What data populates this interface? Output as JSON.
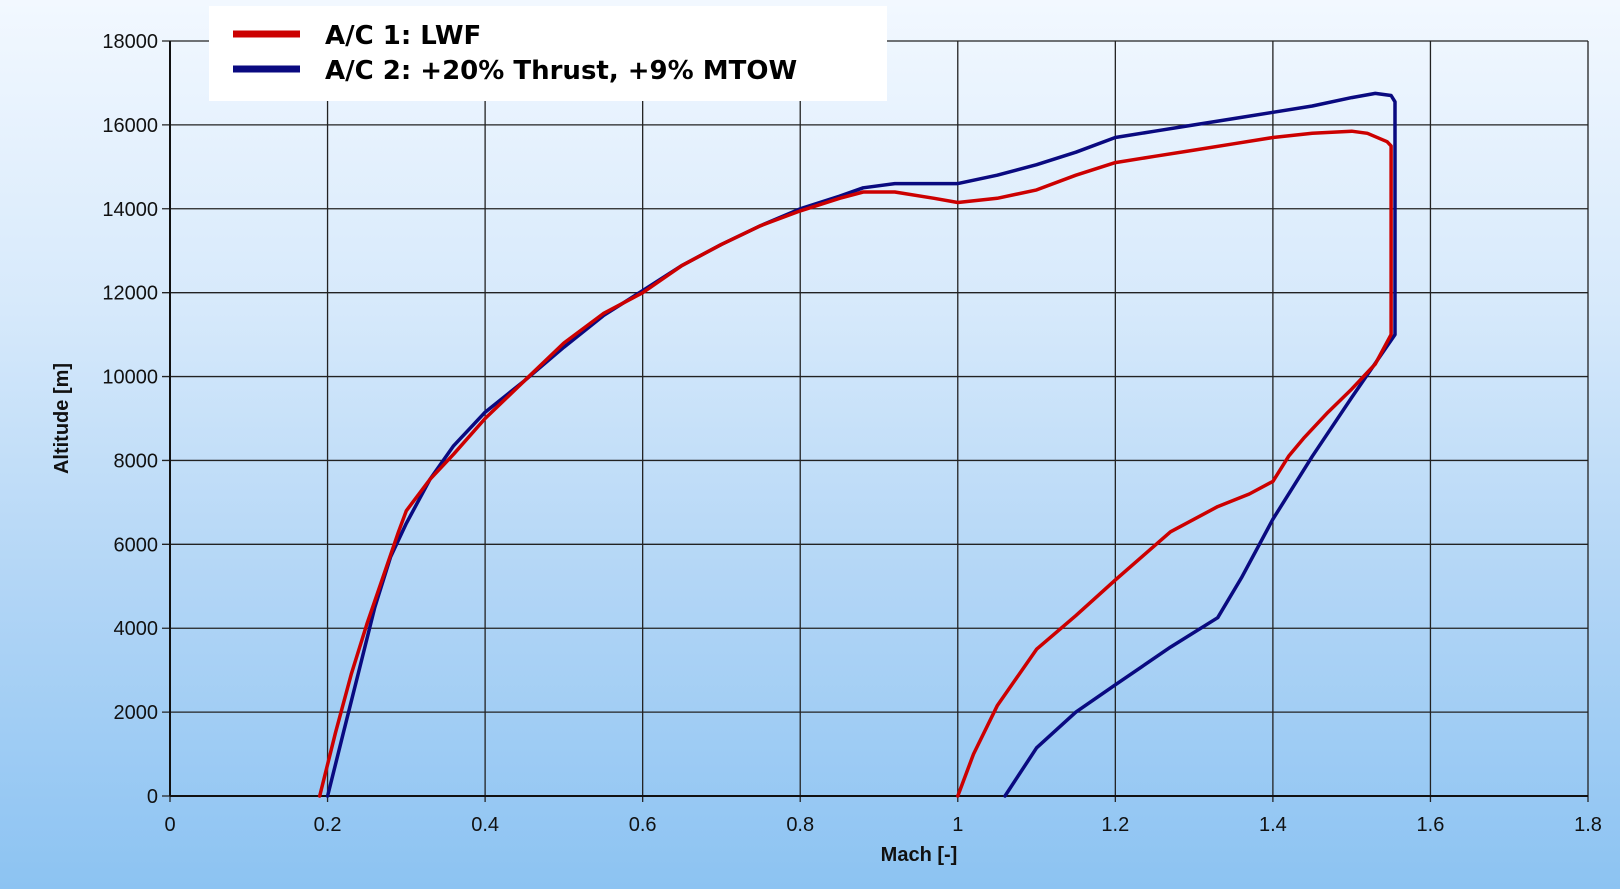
{
  "chart_data": {
    "type": "line",
    "title": "",
    "xlabel": "Mach [-]",
    "ylabel": "Altitude [m]",
    "xlim": [
      0,
      1.8
    ],
    "ylim": [
      0,
      18000
    ],
    "xticks": [
      0,
      0.2,
      0.4,
      0.6,
      0.8,
      1,
      1.2,
      1.4,
      1.6,
      1.8
    ],
    "xtick_labels": [
      "0",
      "0.2",
      "0.4",
      "0.6",
      "0.8",
      "1",
      "1.2",
      "1.4",
      "1.6",
      "1.8"
    ],
    "yticks": [
      0,
      2000,
      4000,
      6000,
      8000,
      10000,
      12000,
      14000,
      16000,
      18000
    ],
    "ytick_labels": [
      "0",
      "2000",
      "4000",
      "6000",
      "8000",
      "10000",
      "12000",
      "14000",
      "16000",
      "18000"
    ],
    "grid": true,
    "legend_position": "top-left",
    "series": [
      {
        "name": "A/C 1: LWF",
        "color": "#cc0000",
        "points": [
          [
            0.19,
            0
          ],
          [
            0.21,
            1500
          ],
          [
            0.23,
            2900
          ],
          [
            0.25,
            4100
          ],
          [
            0.27,
            5200
          ],
          [
            0.29,
            6300
          ],
          [
            0.3,
            6800
          ],
          [
            0.33,
            7550
          ],
          [
            0.36,
            8150
          ],
          [
            0.4,
            9000
          ],
          [
            0.45,
            9900
          ],
          [
            0.5,
            10800
          ],
          [
            0.55,
            11500
          ],
          [
            0.6,
            12000
          ],
          [
            0.65,
            12650
          ],
          [
            0.7,
            13150
          ],
          [
            0.75,
            13600
          ],
          [
            0.8,
            13950
          ],
          [
            0.85,
            14250
          ],
          [
            0.88,
            14400
          ],
          [
            0.92,
            14400
          ],
          [
            0.97,
            14250
          ],
          [
            1.0,
            14150
          ],
          [
            1.05,
            14250
          ],
          [
            1.1,
            14450
          ],
          [
            1.15,
            14800
          ],
          [
            1.2,
            15100
          ],
          [
            1.25,
            15250
          ],
          [
            1.3,
            15400
          ],
          [
            1.35,
            15550
          ],
          [
            1.4,
            15700
          ],
          [
            1.45,
            15800
          ],
          [
            1.5,
            15850
          ],
          [
            1.52,
            15800
          ],
          [
            1.545,
            15600
          ],
          [
            1.55,
            15500
          ],
          [
            1.55,
            11000
          ],
          [
            1.53,
            10300
          ],
          [
            1.5,
            9700
          ],
          [
            1.47,
            9150
          ],
          [
            1.44,
            8550
          ],
          [
            1.42,
            8100
          ],
          [
            1.4,
            7500
          ],
          [
            1.37,
            7200
          ],
          [
            1.33,
            6900
          ],
          [
            1.27,
            6300
          ],
          [
            1.2,
            5150
          ],
          [
            1.15,
            4300
          ],
          [
            1.1,
            3500
          ],
          [
            1.05,
            2150
          ],
          [
            1.02,
            1000
          ],
          [
            1.0,
            0
          ]
        ]
      },
      {
        "name": "A/C 2: +20% Thrust, +9% MTOW",
        "color": "#0a0a80",
        "points": [
          [
            0.2,
            0
          ],
          [
            0.22,
            1500
          ],
          [
            0.24,
            3000
          ],
          [
            0.26,
            4500
          ],
          [
            0.28,
            5700
          ],
          [
            0.3,
            6500
          ],
          [
            0.33,
            7550
          ],
          [
            0.36,
            8350
          ],
          [
            0.4,
            9150
          ],
          [
            0.45,
            9900
          ],
          [
            0.5,
            10700
          ],
          [
            0.55,
            11450
          ],
          [
            0.6,
            12050
          ],
          [
            0.65,
            12650
          ],
          [
            0.7,
            13150
          ],
          [
            0.75,
            13600
          ],
          [
            0.8,
            14000
          ],
          [
            0.85,
            14300
          ],
          [
            0.88,
            14500
          ],
          [
            0.92,
            14600
          ],
          [
            1.0,
            14600
          ],
          [
            1.05,
            14800
          ],
          [
            1.1,
            15050
          ],
          [
            1.15,
            15350
          ],
          [
            1.2,
            15700
          ],
          [
            1.25,
            15850
          ],
          [
            1.3,
            16000
          ],
          [
            1.35,
            16150
          ],
          [
            1.4,
            16300
          ],
          [
            1.45,
            16450
          ],
          [
            1.5,
            16650
          ],
          [
            1.53,
            16750
          ],
          [
            1.55,
            16700
          ],
          [
            1.555,
            16550
          ],
          [
            1.555,
            11000
          ],
          [
            1.5,
            9500
          ],
          [
            1.45,
            8100
          ],
          [
            1.4,
            6600
          ],
          [
            1.36,
            5200
          ],
          [
            1.33,
            4250
          ],
          [
            1.27,
            3550
          ],
          [
            1.2,
            2650
          ],
          [
            1.15,
            2000
          ],
          [
            1.1,
            1150
          ],
          [
            1.06,
            0
          ]
        ]
      }
    ]
  }
}
